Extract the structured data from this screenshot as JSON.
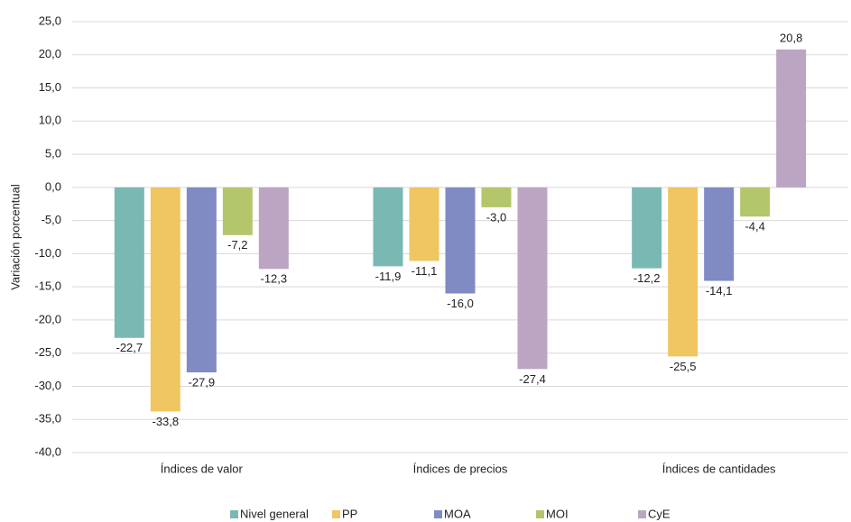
{
  "chart_data": {
    "type": "bar",
    "y_label": "Variación porcentual",
    "categories": [
      "Índices de valor",
      "Índices de precios",
      "Índices de cantidades"
    ],
    "series": [
      {
        "name": "Nivel general",
        "color": "#7ab8b3",
        "values": [
          -22.7,
          -11.9,
          -12.2
        ],
        "value_labels": [
          "-22,7",
          "-11,9",
          "-12,2"
        ]
      },
      {
        "name": "PP",
        "color": "#efc661",
        "values": [
          -33.8,
          -11.1,
          -25.5
        ],
        "value_labels": [
          "-33,8",
          "-11,1",
          "-25,5"
        ]
      },
      {
        "name": "MOA",
        "color": "#808bc3",
        "values": [
          -27.9,
          -16.0,
          -14.1
        ],
        "value_labels": [
          "-27,9",
          "-16,0",
          "-14,1"
        ]
      },
      {
        "name": "MOI",
        "color": "#b4c66c",
        "values": [
          -7.2,
          -3.0,
          -4.4
        ],
        "value_labels": [
          "-7,2",
          "-3,0",
          "-4,4"
        ]
      },
      {
        "name": "CyE",
        "color": "#bba5c2",
        "values": [
          -12.3,
          -27.4,
          20.8
        ],
        "value_labels": [
          "-12,3",
          "-27,4",
          "20,8"
        ]
      }
    ],
    "ylim": [
      -40,
      25
    ],
    "yticks": [
      {
        "value": -40,
        "label": "-40,0"
      },
      {
        "value": -35,
        "label": "-35,0"
      },
      {
        "value": -30,
        "label": "-30,0"
      },
      {
        "value": -25,
        "label": "-25,0"
      },
      {
        "value": -20,
        "label": "-20,0"
      },
      {
        "value": -15,
        "label": "-15,0"
      },
      {
        "value": -10,
        "label": "-10,0"
      },
      {
        "value": -5,
        "label": "-5,0"
      },
      {
        "value": 0,
        "label": "0,0"
      },
      {
        "value": 5,
        "label": "5,0"
      },
      {
        "value": 10,
        "label": "10,0"
      },
      {
        "value": 15,
        "label": "15,0"
      },
      {
        "value": 20,
        "label": "20,0"
      },
      {
        "value": 25,
        "label": "25,0"
      }
    ],
    "grid": true,
    "legend": "bottom"
  }
}
